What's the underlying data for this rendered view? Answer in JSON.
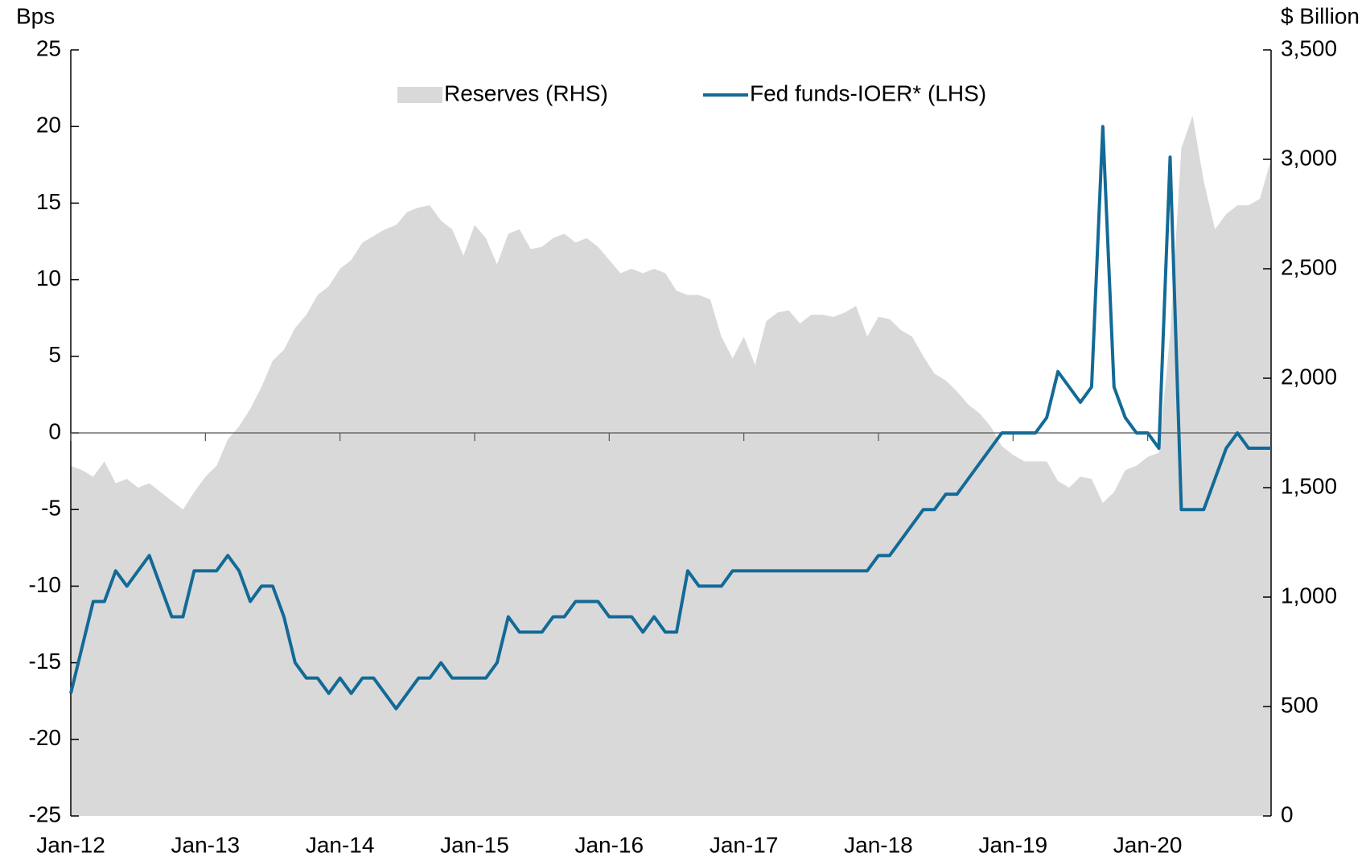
{
  "chart_data": {
    "type": "line",
    "y_label": "Bps",
    "y2_label": "$ Billion",
    "categories": [
      "Jan-12",
      null,
      null,
      null,
      null,
      null,
      null,
      null,
      null,
      null,
      null,
      null,
      "Jan-13",
      null,
      null,
      null,
      null,
      null,
      null,
      null,
      null,
      null,
      null,
      null,
      "Jan-14",
      null,
      null,
      null,
      null,
      null,
      null,
      null,
      null,
      null,
      null,
      null,
      "Jan-15",
      null,
      null,
      null,
      null,
      null,
      null,
      null,
      null,
      null,
      null,
      null,
      "Jan-16",
      null,
      null,
      null,
      null,
      null,
      null,
      null,
      null,
      null,
      null,
      null,
      "Jan-17",
      null,
      null,
      null,
      null,
      null,
      null,
      null,
      null,
      null,
      null,
      null,
      "Jan-18",
      null,
      null,
      null,
      null,
      null,
      null,
      null,
      null,
      null,
      null,
      null,
      "Jan-19",
      null,
      null,
      null,
      null,
      null,
      null,
      null,
      null,
      null,
      null,
      null,
      "Jan-20",
      null,
      null,
      null,
      null,
      null,
      null,
      null,
      null,
      null,
      null,
      null
    ],
    "series": [
      {
        "name": "Reserves (RHS)",
        "type": "area",
        "axis": "y2",
        "color": "#d9d9d9",
        "values": [
          1600,
          1580,
          1550,
          1620,
          1520,
          1540,
          1500,
          1520,
          1480,
          1440,
          1400,
          1480,
          1550,
          1600,
          1720,
          1780,
          1860,
          1960,
          2080,
          2130,
          2230,
          2290,
          2380,
          2420,
          2500,
          2540,
          2620,
          2650,
          2680,
          2700,
          2760,
          2780,
          2790,
          2720,
          2680,
          2560,
          2700,
          2640,
          2520,
          2660,
          2680,
          2590,
          2600,
          2640,
          2660,
          2620,
          2640,
          2600,
          2540,
          2480,
          2500,
          2480,
          2500,
          2480,
          2400,
          2380,
          2380,
          2360,
          2190,
          2090,
          2190,
          2060,
          2260,
          2300,
          2310,
          2250,
          2290,
          2290,
          2280,
          2300,
          2330,
          2190,
          2280,
          2270,
          2220,
          2190,
          2100,
          2020,
          1990,
          1940,
          1880,
          1840,
          1780,
          1690,
          1650,
          1620,
          1620,
          1620,
          1530,
          1500,
          1550,
          1540,
          1430,
          1480,
          1580,
          1600,
          1640,
          1660,
          2200,
          3050,
          3200,
          2900,
          2680,
          2750,
          2790,
          2790,
          2820,
          3000
        ]
      },
      {
        "name": "Fed funds-IOER* (LHS)",
        "type": "line",
        "axis": "y",
        "color": "#136a96",
        "values": [
          -17,
          -14,
          -11,
          -11,
          -9,
          -10,
          -9,
          -8,
          -10,
          -12,
          -12,
          -9,
          -9,
          -9,
          -8,
          -9,
          -11,
          -10,
          -10,
          -12,
          -15,
          -16,
          -16,
          -17,
          -16,
          -17,
          -16,
          -16,
          -17,
          -18,
          -17,
          -16,
          -16,
          -15,
          -16,
          -16,
          -16,
          -16,
          -15,
          -12,
          -13,
          -13,
          -13,
          -12,
          -12,
          -11,
          -11,
          -11,
          -12,
          -12,
          -12,
          -13,
          -12,
          -13,
          -13,
          -9,
          -10,
          -10,
          -10,
          -9,
          -9,
          -9,
          -9,
          -9,
          -9,
          -9,
          -9,
          -9,
          -9,
          -9,
          -9,
          -9,
          -8,
          -8,
          -7,
          -6,
          -5,
          -5,
          -4,
          -4,
          -3,
          -2,
          -1,
          0,
          0,
          0,
          0,
          1,
          4,
          3,
          2,
          3,
          20,
          3,
          1,
          0,
          0,
          -1,
          18,
          -5,
          -5,
          -5,
          -3,
          -1,
          0,
          -1,
          -1,
          -1
        ]
      }
    ],
    "ylim": [
      -25,
      25
    ],
    "yticks": [
      -25,
      -20,
      -15,
      -10,
      -5,
      0,
      5,
      10,
      15,
      20,
      25
    ],
    "y2lim": [
      0,
      3500
    ],
    "y2ticks": [
      0,
      500,
      {
        "value": 1000,
        "label": "1,000"
      },
      {
        "value": 1500,
        "label": "1,500"
      },
      {
        "value": 2000,
        "label": "2,000"
      },
      {
        "value": 2500,
        "label": "2,500"
      },
      {
        "value": 3000,
        "label": "3,000"
      },
      {
        "value": 3500,
        "label": "3,500"
      }
    ],
    "legend": "top"
  }
}
